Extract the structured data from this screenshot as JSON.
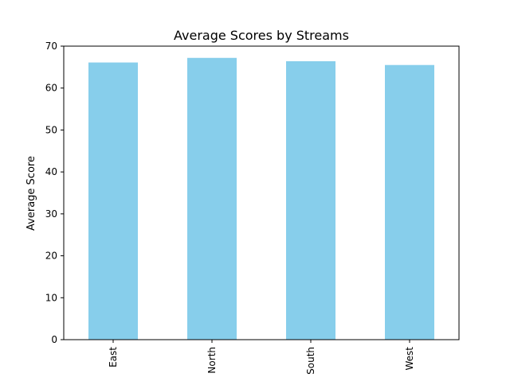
{
  "chart_data": {
    "type": "bar",
    "title": "Average Scores by Streams",
    "xlabel": "",
    "ylabel": "Average Score",
    "categories": [
      "East",
      "North",
      "South",
      "West"
    ],
    "values": [
      66.1,
      67.2,
      66.4,
      65.5
    ],
    "ylim": [
      0,
      70
    ],
    "yticks": [
      "0",
      "10",
      "20",
      "30",
      "40",
      "50",
      "60",
      "70"
    ],
    "bar_color": "#87ceeb",
    "grid": false,
    "legend": "none",
    "xtick_rotation": "vertical"
  }
}
